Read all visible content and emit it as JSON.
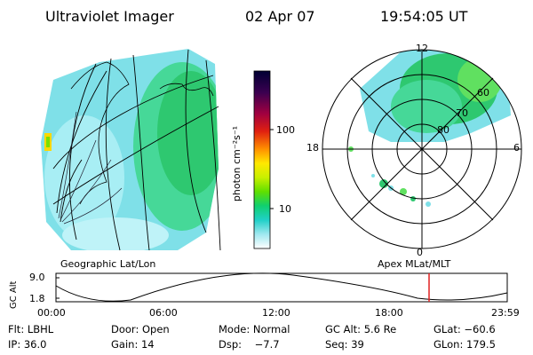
{
  "header": {
    "title": "Ultraviolet Imager",
    "date": "02 Apr 07",
    "time": "19:54:05 UT"
  },
  "colorbar": {
    "label": "photon cm⁻²s⁻¹",
    "ticks": [
      "100",
      "10"
    ],
    "colors": [
      "#000033",
      "#3a0050",
      "#7a0030",
      "#c80020",
      "#ff3000",
      "#ff9a00",
      "#ffe800",
      "#c8f000",
      "#7ae000",
      "#20d060",
      "#00d0b0",
      "#60e0e8",
      "#c0f0f8",
      "#ffffff"
    ]
  },
  "geo_map": {
    "caption": "Geographic Lat/Lon"
  },
  "polar_plot": {
    "caption": "Apex MLat/MLT",
    "mlt_labels": {
      "top": "12",
      "bottom": "0",
      "left": "18",
      "right": "6"
    },
    "lat_labels": [
      "60",
      "70",
      "80"
    ]
  },
  "altitude_plot": {
    "ylabel": "GC Alt",
    "yticks": [
      "9.0",
      "1.8"
    ],
    "xticks": [
      "00:00",
      "06:00",
      "12:00",
      "18:00",
      "23:59"
    ],
    "marker_color": "#e02020"
  },
  "status": {
    "row1": [
      "Flt: LBHL",
      "Door: Open",
      "Mode: Normal",
      "GC Alt: 5.6 Re",
      "GLat: −60.6"
    ],
    "row2": [
      "IP: 36.0",
      "Gain: 14",
      "Dsp:    −7.7",
      "Seq: 39",
      "GLon: 179.5"
    ]
  }
}
